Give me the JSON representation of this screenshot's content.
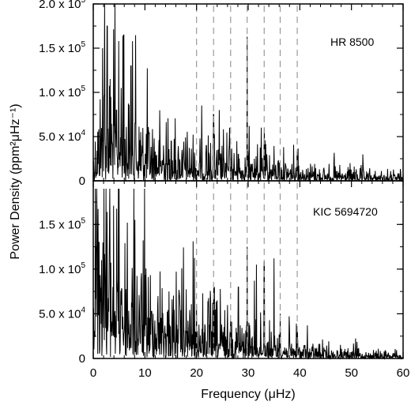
{
  "chart_data": {
    "type": "line",
    "xlabel": "Frequency (μHz)",
    "ylabel": "Power Density (ppm²μHz⁻¹)",
    "xlim": [
      0,
      60
    ],
    "x_ticks": [
      "0",
      "10",
      "20",
      "30",
      "40",
      "50",
      "60"
    ],
    "dashed_lines_x": [
      20.0,
      23.3,
      26.6,
      29.8,
      33.1,
      36.2,
      39.5
    ],
    "panels": [
      {
        "label": "HR 8500",
        "ylim": [
          0,
          200000
        ],
        "y_ticks": [
          {
            "value": 0,
            "mant": "0",
            "exp": ""
          },
          {
            "value": 50000,
            "mant": "5.0 x 10",
            "exp": "4"
          },
          {
            "value": 100000,
            "mant": "1.0 x 10",
            "exp": "5"
          },
          {
            "value": 150000,
            "mant": "1.5 x 10",
            "exp": "5"
          },
          {
            "value": 200000,
            "mant": "2.0 x 10",
            "exp": "5"
          }
        ],
        "peaks": [
          [
            1.8,
            150000
          ],
          [
            2.2,
            200000
          ],
          [
            2.7,
            175000
          ],
          [
            3.4,
            95000
          ],
          [
            4.5,
            80000
          ],
          [
            5.4,
            105000
          ],
          [
            5.9,
            165000
          ],
          [
            6.8,
            70000
          ],
          [
            7.3,
            130000
          ],
          [
            8.1,
            65000
          ],
          [
            9.2,
            55000
          ],
          [
            10.4,
            50000
          ],
          [
            11.8,
            48000
          ],
          [
            13.6,
            40000
          ],
          [
            15.1,
            45000
          ],
          [
            17.2,
            35000
          ],
          [
            19.6,
            32000
          ],
          [
            21.9,
            40000
          ],
          [
            23.3,
            75000
          ],
          [
            24.4,
            80000
          ],
          [
            26.4,
            60000
          ],
          [
            28.1,
            30000
          ],
          [
            29.8,
            163000
          ],
          [
            31.2,
            25000
          ],
          [
            33.1,
            38000
          ],
          [
            35.8,
            22000
          ],
          [
            37.2,
            20000
          ],
          [
            39.5,
            32000
          ],
          [
            50.8,
            10000
          ]
        ],
        "noise_envelope": {
          "x": [
            0,
            2,
            5,
            10,
            15,
            20,
            25,
            30,
            35,
            40,
            45,
            50,
            55,
            60
          ],
          "y": [
            20000,
            60000,
            45000,
            30000,
            22000,
            18000,
            15000,
            14000,
            12000,
            9000,
            6000,
            5000,
            4000,
            3500
          ]
        }
      },
      {
        "label": "KIC 5694720",
        "ylim": [
          0,
          190000
        ],
        "y_ticks": [
          {
            "value": 0,
            "mant": "0",
            "exp": ""
          },
          {
            "value": 50000,
            "mant": "5.0 x 10",
            "exp": "4"
          },
          {
            "value": 100000,
            "mant": "1.0 x 10",
            "exp": "5"
          },
          {
            "value": 150000,
            "mant": "1.5 x 10",
            "exp": "5"
          }
        ],
        "peaks": [
          [
            0.4,
            190000
          ],
          [
            0.7,
            160000
          ],
          [
            1.1,
            130000
          ],
          [
            1.6,
            110000
          ],
          [
            2.3,
            90000
          ],
          [
            3.1,
            100000
          ],
          [
            3.8,
            80000
          ],
          [
            4.7,
            75000
          ],
          [
            5.5,
            78000
          ],
          [
            6.6,
            152000
          ],
          [
            7.6,
            72000
          ],
          [
            8.9,
            60000
          ],
          [
            10.2,
            55000
          ],
          [
            11.6,
            50000
          ],
          [
            13.1,
            45000
          ],
          [
            14.8,
            38000
          ],
          [
            16.4,
            33000
          ],
          [
            18.2,
            30000
          ],
          [
            20.0,
            25000
          ],
          [
            21.6,
            30000
          ],
          [
            23.3,
            55000
          ],
          [
            24.6,
            36000
          ],
          [
            26.6,
            42000
          ],
          [
            28.1,
            80000
          ],
          [
            29.8,
            125000
          ],
          [
            31.6,
            105000
          ],
          [
            33.1,
            108000
          ],
          [
            35.0,
            112000
          ],
          [
            36.2,
            50000
          ],
          [
            39.5,
            30000
          ],
          [
            41.0,
            15000
          ]
        ],
        "noise_envelope": {
          "x": [
            0,
            1,
            3,
            5,
            10,
            15,
            20,
            25,
            30,
            35,
            40,
            45,
            50,
            55,
            60
          ],
          "y": [
            120000,
            95000,
            75000,
            60000,
            42000,
            32000,
            25000,
            20000,
            16000,
            12000,
            8000,
            5000,
            4000,
            3000,
            2500
          ]
        }
      }
    ]
  }
}
